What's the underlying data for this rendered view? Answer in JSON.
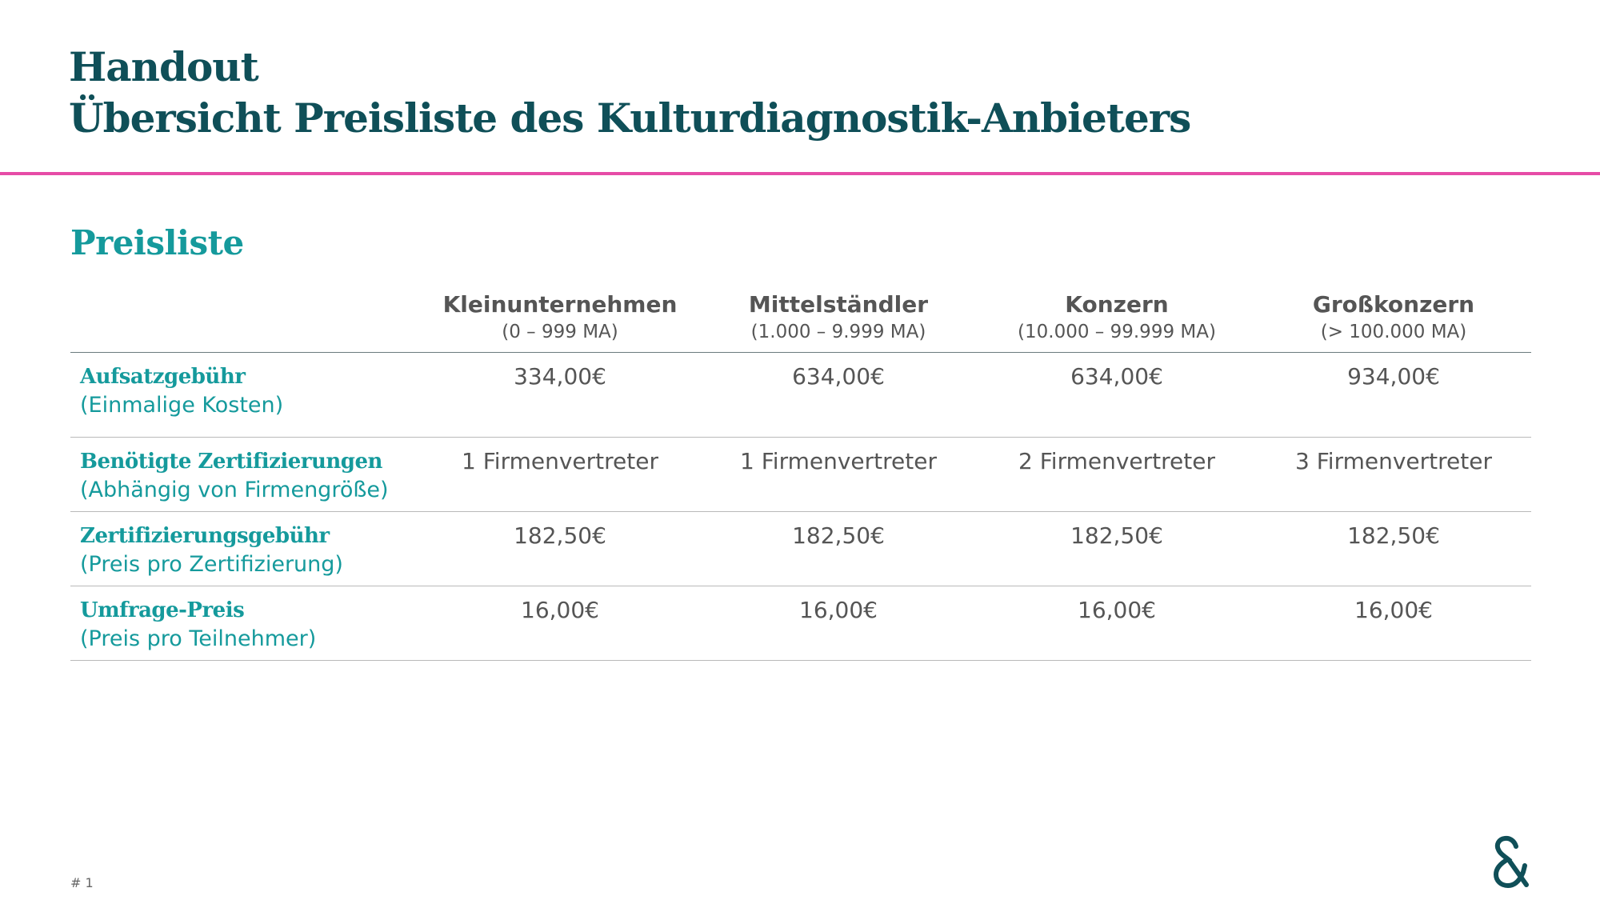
{
  "header": {
    "title_line1": "Handout",
    "title_line2": "Übersicht Preisliste des Kulturdiagnostik-Anbieters",
    "accent_color": "#e64ca6",
    "title_color": "#0f4f58"
  },
  "section": {
    "title": "Preisliste",
    "color": "#159a9c"
  },
  "table": {
    "columns": [
      {
        "name": "Kleinunternehmen",
        "size": "(0 – 999 MA)"
      },
      {
        "name": "Mittelständler",
        "size": "(1.000 – 9.999 MA)"
      },
      {
        "name": "Konzern",
        "size": "(10.000 – 99.999 MA)"
      },
      {
        "name": "Großkonzern",
        "size": "(> 100.000 MA)"
      }
    ],
    "rows": [
      {
        "label": "Aufsatzgebühr",
        "sublabel": "(Einmalige Kosten)",
        "values": [
          "334,00€",
          "634,00€",
          "634,00€",
          "934,00€"
        ]
      },
      {
        "label": "Benötigte Zertifizierungen",
        "sublabel": "(Abhängig von Firmengröße)",
        "values": [
          "1 Firmenvertreter",
          "1 Firmenvertreter",
          "2 Firmenvertreter",
          "3 Firmenvertreter"
        ]
      },
      {
        "label": "Zertifizierungsgebühr",
        "sublabel": "(Preis pro Zertifizierung)",
        "values": [
          "182,50€",
          "182,50€",
          "182,50€",
          "182,50€"
        ]
      },
      {
        "label": "Umfrage-Preis",
        "sublabel": "(Preis pro Teilnehmer)",
        "values": [
          "16,00€",
          "16,00€",
          "16,00€",
          "16,00€"
        ]
      }
    ]
  },
  "footer": {
    "page_number": "# 1",
    "logo_icon": "ampersand-logo-icon"
  }
}
